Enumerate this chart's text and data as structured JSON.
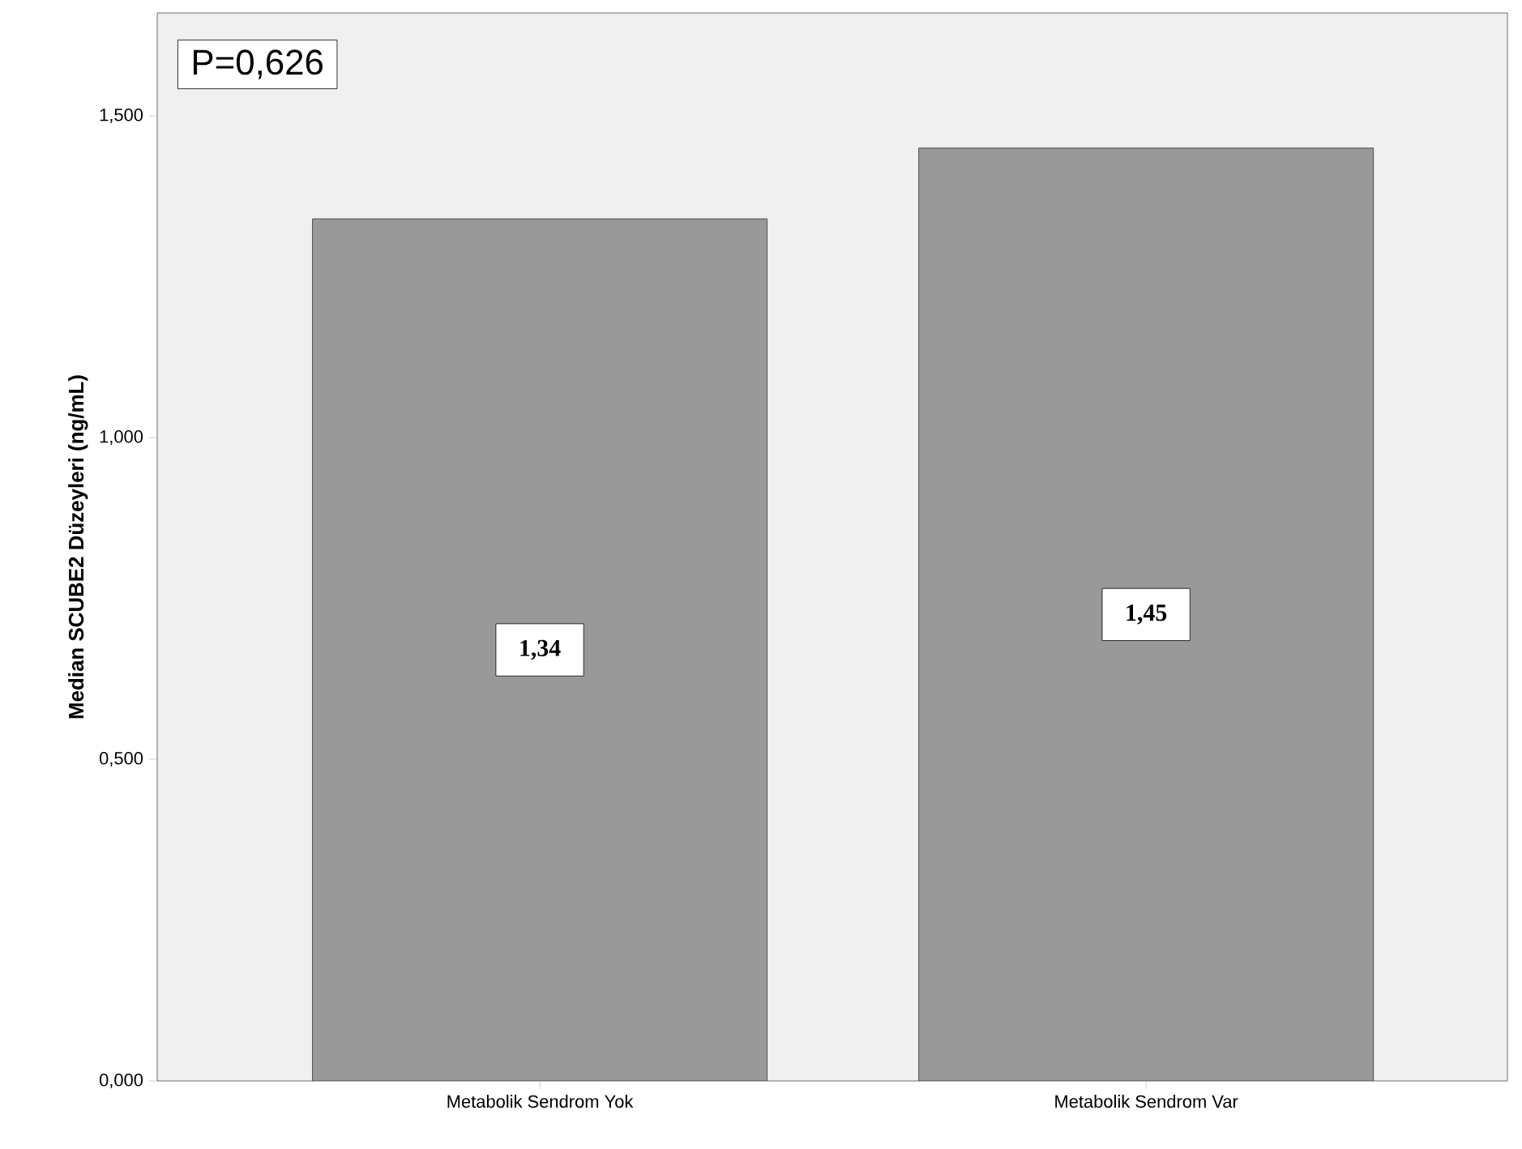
{
  "chart_data": {
    "type": "bar",
    "ylabel": "Median SCUBE2 Düzeyleri (ng/mL)",
    "categories": [
      "Metabolik Sendrom Yok",
      "Metabolik Sendrom Var"
    ],
    "values": [
      1.34,
      1.45
    ],
    "color": "#999999",
    "value_labels": [
      "1,34",
      "1,45"
    ],
    "ylim": [
      0,
      1.66
    ],
    "yticks": [
      {
        "value": 0,
        "label": "0,000"
      },
      {
        "value": 0.5,
        "label": "0,500"
      },
      {
        "value": 1.0,
        "label": "1,000"
      },
      {
        "value": 1.5,
        "label": "1,500"
      }
    ],
    "annotations": [
      "P=0,626"
    ]
  }
}
